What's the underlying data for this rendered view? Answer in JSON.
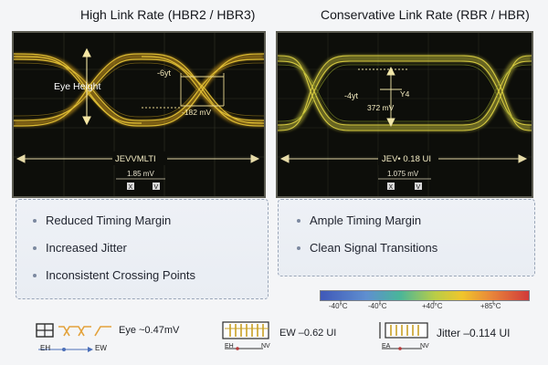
{
  "left": {
    "title": "High Link Rate (HBR2 / HBR3)",
    "eye_height_label": "Eye Height",
    "time_label": "-6yt",
    "voltage_label": "-182 mV",
    "bottom_label": "JEVVMLTI",
    "scale_value": "1.85 mV",
    "marker_a": "X",
    "marker_b": "V",
    "bullets": [
      "Reduced Timing Margin",
      "Increased Jitter",
      "Inconsistent Crossing Points"
    ]
  },
  "right": {
    "title": "Conservative Link Rate (RBR / HBR)",
    "time_label": "-4yt",
    "time_label_b": "Y4",
    "voltage_label": "372 mV",
    "bottom_label": "JEV• 0.18 UI",
    "scale_value": "1.075 mV",
    "marker_a": "X",
    "marker_b": "V",
    "bullets": [
      "Ample Timing Margin",
      "Clean Signal Transitions"
    ]
  },
  "colorbar": {
    "labels": [
      "-40°C",
      "-40°C",
      "+40°C",
      "+85°C"
    ]
  },
  "legend": [
    {
      "icon": "eye-waveform-icon",
      "label": "Eye ~0.47mV",
      "sub_left": "EH",
      "sub_right": "EW"
    },
    {
      "icon": "eye-width-icon",
      "label": "EW –0.62 UI",
      "sub_left": "EH",
      "sub_right": "NV"
    },
    {
      "icon": "jitter-icon",
      "label": "Jitter –0.114 UI",
      "sub_left": "EA",
      "sub_right": "NV"
    }
  ]
}
